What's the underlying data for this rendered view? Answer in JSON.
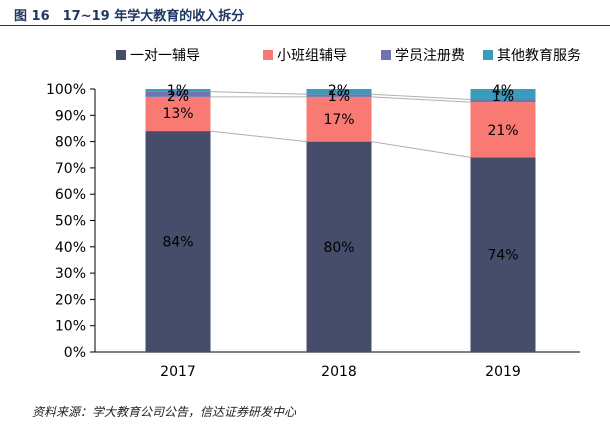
{
  "figure": {
    "title": "图 16　17~19 年学大教育的收入拆分",
    "source": "资料来源：学大教育公司公告，信达证券研发中心"
  },
  "chart_data": {
    "type": "bar",
    "stacked": true,
    "categories": [
      "2017",
      "2018",
      "2019"
    ],
    "series": [
      {
        "name": "一对一辅导",
        "values": [
          84,
          80,
          74
        ],
        "labels": [
          "84%",
          "80%",
          "74%"
        ],
        "color": "#454d6a"
      },
      {
        "name": "小班组辅导",
        "values": [
          13,
          17,
          21
        ],
        "labels": [
          "13%",
          "17%",
          "21%"
        ],
        "color": "#f97a73"
      },
      {
        "name": "学员注册费",
        "values": [
          2,
          1,
          1
        ],
        "labels": [
          "2%",
          "1%",
          "1%"
        ],
        "color": "#6f74ae"
      },
      {
        "name": "其他教育服务",
        "values": [
          1,
          2,
          4
        ],
        "labels": [
          "1%",
          "2%",
          "4%"
        ],
        "color": "#3a9bba"
      }
    ],
    "yticks": [
      "0%",
      "10%",
      "20%",
      "30%",
      "40%",
      "50%",
      "60%",
      "70%",
      "80%",
      "90%",
      "100%"
    ],
    "ylim": [
      0,
      100
    ],
    "legend_position": "top",
    "series_lines": true
  }
}
